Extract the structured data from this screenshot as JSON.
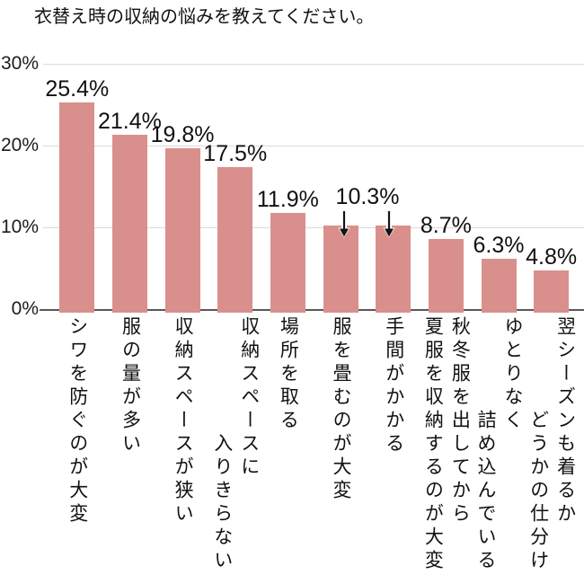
{
  "title": "衣替え時の収納の悩みを教えてください。",
  "colors": {
    "bar": "#D9908C",
    "gridline": "#DBDBDB",
    "axis_line": "#595959",
    "text": "#111111"
  },
  "axis": {
    "yticks": [
      "30%",
      "20%",
      "10%",
      "0%"
    ]
  },
  "annotation": {
    "shared_label_text": "10.3%",
    "shared_label_applies_to": [
      "服を畳むのが大変",
      "手間がかかる"
    ],
    "arrow_glyph": "↓"
  },
  "chart_data": {
    "type": "bar",
    "title": "衣替え時の収納の悩みを教えてください。",
    "xlabel": "",
    "ylabel": "",
    "ylim": [
      0,
      30
    ],
    "grid": true,
    "yticks": [
      "30%",
      "20%",
      "10%",
      "0%"
    ],
    "categories": [
      "シワを防ぐのが大変",
      "服の量が多い",
      "収納スペースが狭い",
      "収納スペースに入りきらない",
      "場所を取る",
      "服を畳むのが大変",
      "手間がかかる",
      "秋冬服を出してから夏服を収納するのが大変",
      "ゆとりなく詰め込んでいる",
      "翌シーズンも着るかどうかの仕分け"
    ],
    "values": [
      25.4,
      21.4,
      19.8,
      17.5,
      11.9,
      10.3,
      10.3,
      8.7,
      6.3,
      4.8
    ],
    "value_labels": [
      "25.4%",
      "21.4%",
      "19.8%",
      "17.5%",
      "11.9%",
      "10.3%",
      "10.3%",
      "8.7%",
      "6.3%",
      "4.8%"
    ],
    "shared_value_label": {
      "text": "10.3%",
      "bar_indexes": [
        5,
        6
      ]
    },
    "category_label_lines": [
      [
        {
          "text": "シワを防ぐのが大変",
          "indent": 0
        }
      ],
      [
        {
          "text": "服の量が多い",
          "indent": 0
        }
      ],
      [
        {
          "text": "収納スペースが狭い",
          "indent": 0
        }
      ],
      [
        {
          "text": "収納スペースに",
          "indent": 0
        },
        {
          "text": "入りきらない",
          "indent": 5
        }
      ],
      [
        {
          "text": "場所を取る",
          "indent": 0
        }
      ],
      [
        {
          "text": "服を畳むのが大変",
          "indent": 0
        }
      ],
      [
        {
          "text": "手間がかかる",
          "indent": 0
        }
      ],
      [
        {
          "text": "秋冬服を出してから",
          "indent": 0
        },
        {
          "text": "夏服を収納するのが大変",
          "indent": 0
        }
      ],
      [
        {
          "text": "ゆとりなく",
          "indent": 0
        },
        {
          "text": "詰め込んでいる",
          "indent": 4
        }
      ],
      [
        {
          "text": "翌シーズンも着るか",
          "indent": 0
        },
        {
          "text": "どうかの仕分け",
          "indent": 4
        }
      ]
    ],
    "legend": null
  }
}
